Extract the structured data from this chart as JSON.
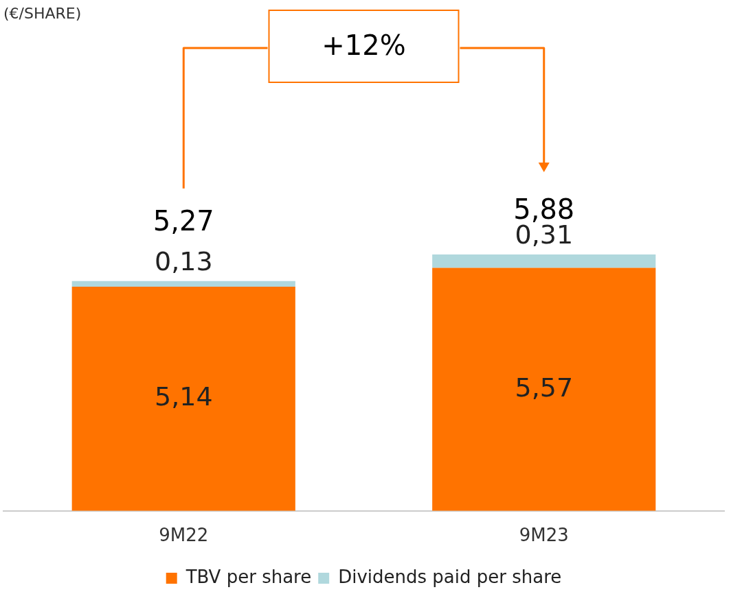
{
  "chart_data": {
    "type": "bar",
    "stacked": true,
    "subtitle": "(€/SHARE)",
    "categories": [
      "9M22",
      "9M23"
    ],
    "series": [
      {
        "name": "TBV per share",
        "color": "#ff7300",
        "values": [
          5.14,
          5.57
        ],
        "value_labels": [
          "5,14",
          "5,57"
        ]
      },
      {
        "name": "Dividends paid per share",
        "color": "#b0d8dd",
        "values": [
          0.13,
          0.31
        ],
        "value_labels": [
          "0,13",
          "0,31"
        ]
      }
    ],
    "totals": [
      "5,27",
      "5,88"
    ],
    "annotations": [
      "+12%"
    ],
    "legend": "bottom",
    "grid": false
  }
}
